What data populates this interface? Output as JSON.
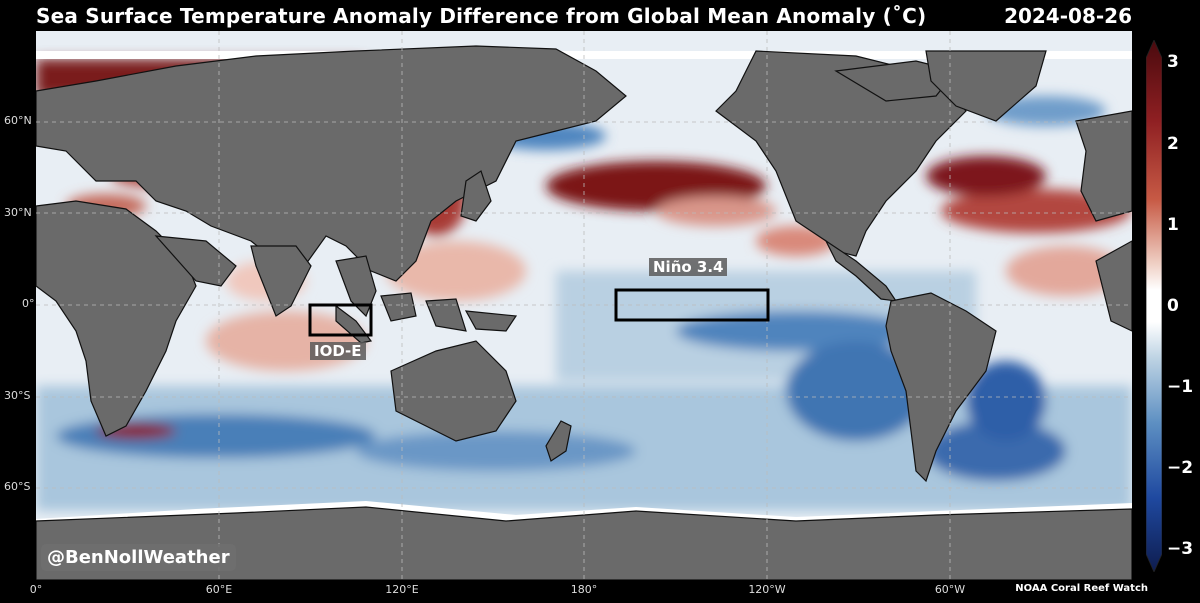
{
  "title": "Sea Surface Temperature Anomaly Difference from Global Mean Anomaly (˚C)",
  "date": "2024-08-26",
  "lat_labels": [
    "60°N",
    "30°N",
    "0°",
    "30°S",
    "60°S"
  ],
  "lon_labels": [
    "0°",
    "60°E",
    "120°E",
    "180°",
    "120°W",
    "60°W"
  ],
  "colorbar": {
    "labels": [
      "3",
      "2",
      "1",
      "0",
      "−1",
      "−2",
      "−3"
    ],
    "min": -3,
    "max": 3
  },
  "regions": {
    "nino34": "Niño 3.4",
    "iode": "IOD-E"
  },
  "watermark": "@BenNollWeather",
  "credit": "NOAA Coral Reef Watch",
  "colors": {
    "land": "#6a6a6a",
    "warm": "#6b0d12",
    "cool": "#1a3f8f",
    "neutral": "#ffffff"
  }
}
